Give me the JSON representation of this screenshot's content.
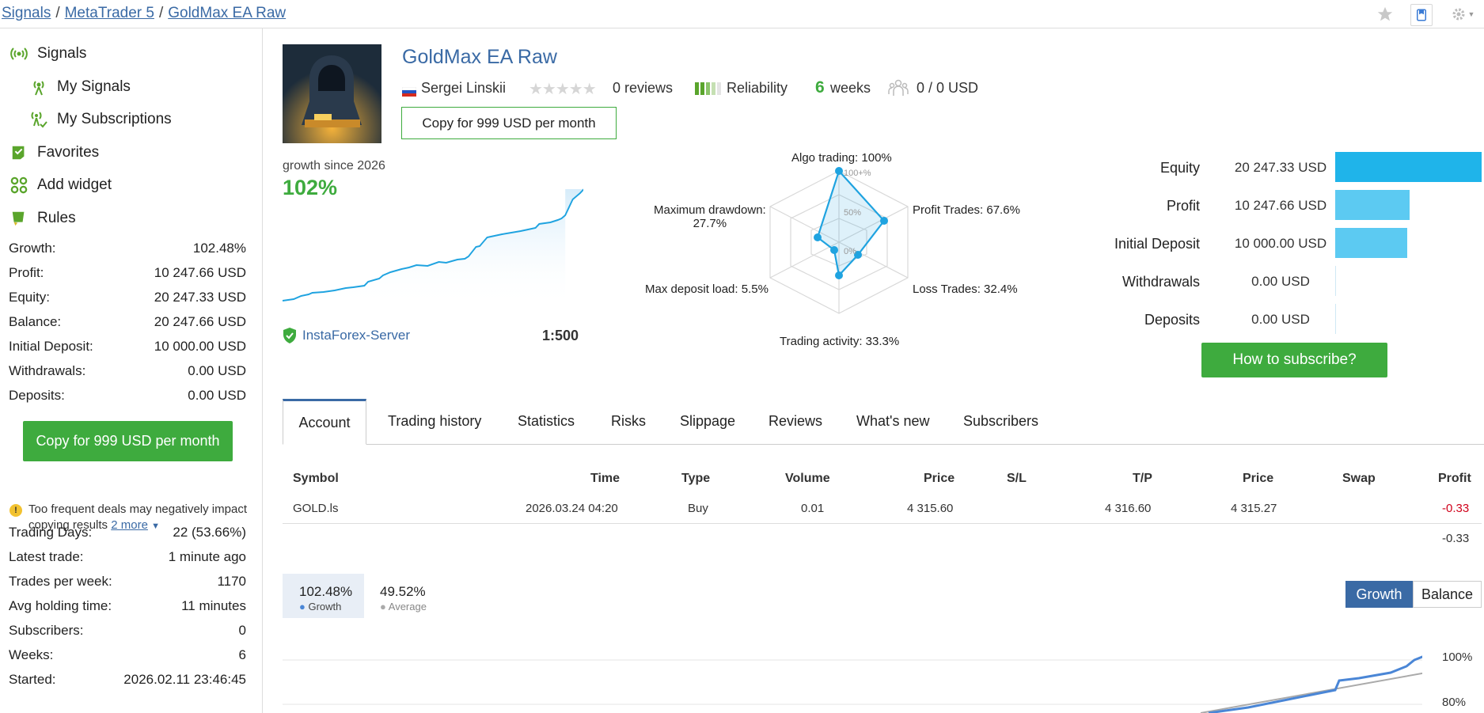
{
  "breadcrumbs": [
    "Signals",
    "MetaTrader 5",
    "GoldMax EA Raw"
  ],
  "top_icons": [
    "star-icon",
    "bookmark-icon",
    "gear-icon"
  ],
  "sidebar": {
    "nav": [
      {
        "label": "Signals",
        "icon": "signal-icon"
      },
      {
        "label": "My Signals",
        "icon": "signal-icon"
      },
      {
        "label": "My Subscriptions",
        "icon": "subscription-icon"
      },
      {
        "label": "Favorites",
        "icon": "favorites-icon"
      },
      {
        "label": "Add widget",
        "icon": "widget-icon"
      },
      {
        "label": "Rules",
        "icon": "rules-icon"
      }
    ],
    "stats": [
      {
        "label": "Growth:",
        "value": "102.48%"
      },
      {
        "label": "Profit:",
        "value": "10 247.66 USD"
      },
      {
        "label": "Equity:",
        "value": "20 247.33 USD"
      },
      {
        "label": "Balance:",
        "value": "20 247.66 USD"
      },
      {
        "label": "Initial Deposit:",
        "value": "10 000.00 USD"
      },
      {
        "label": "Withdrawals:",
        "value": "0.00 USD"
      },
      {
        "label": "Deposits:",
        "value": "0.00 USD"
      }
    ],
    "copy_button": "Copy for 999 USD per month",
    "warning": {
      "text": "Too frequent deals may negatively impact copying results",
      "more": "2 more"
    },
    "stats2": [
      {
        "label": "Trading Days:",
        "value": "22 (53.66%)"
      },
      {
        "label": "Latest trade:",
        "value": "1 minute ago"
      },
      {
        "label": "Trades per week:",
        "value": "1170"
      },
      {
        "label": "Avg holding time:",
        "value": "11 minutes"
      },
      {
        "label": "Subscribers:",
        "value": "0"
      },
      {
        "label": "Weeks:",
        "value": "6"
      },
      {
        "label": "Started:",
        "value": "2026.02.11 23:46:45"
      }
    ]
  },
  "signal": {
    "title": "GoldMax EA Raw",
    "author": "Sergei Linskii",
    "reviews": "0 reviews",
    "rating_stars": 0,
    "reliability": "Reliability",
    "weeks_num": "6",
    "weeks_label": "weeks",
    "subscribers_funds": "0 / 0 USD",
    "copy_button": "Copy for 999 USD per month",
    "growth_label": "growth since 2026",
    "growth_value": "102%",
    "server": "InstaForex-Server",
    "leverage": "1:500"
  },
  "radar": {
    "labels": {
      "algo": "Algo trading: 100%",
      "profit": "Profit Trades: 67.6%",
      "loss": "Loss Trades: 32.4%",
      "activity": "Trading activity: 33.3%",
      "load": "Max deposit load: 5.5%",
      "drawdown_1": "Maximum drawdown:",
      "drawdown_2": "27.7%"
    },
    "rings": [
      "100+%",
      "50%",
      "0%"
    ]
  },
  "bars": [
    {
      "label": "Equity",
      "value": "20 247.33 USD",
      "fraction": 1.0,
      "color": "#1fb4ea"
    },
    {
      "label": "Profit",
      "value": "10 247.66 USD",
      "fraction": 0.506,
      "color": "#5ccaf2"
    },
    {
      "label": "Initial Deposit",
      "value": "10 000.00 USD",
      "fraction": 0.494,
      "color": "#5ccaf2"
    },
    {
      "label": "Withdrawals",
      "value": "0.00 USD",
      "fraction": 0,
      "color": "#5ccaf2"
    },
    {
      "label": "Deposits",
      "value": "0.00 USD",
      "fraction": 0,
      "color": "#5ccaf2"
    }
  ],
  "how_to_subscribe": "How to subscribe?",
  "tabs": [
    "Account",
    "Trading history",
    "Statistics",
    "Risks",
    "Slippage",
    "Reviews",
    "What's new",
    "Subscribers"
  ],
  "table": {
    "headers": [
      "Symbol",
      "Time",
      "Type",
      "Volume",
      "Price",
      "S/L",
      "T/P",
      "Price",
      "Swap",
      "Profit"
    ],
    "row": [
      "GOLD.ls",
      "2026.03.24 04:20",
      "Buy",
      "0.01",
      "4 315.60",
      "",
      "4 316.60",
      "4 315.27",
      "",
      "-0.33"
    ],
    "total": "-0.33"
  },
  "chart_selector": {
    "growth_value": "102.48%",
    "growth_label": "Growth",
    "average_value": "49.52%",
    "average_label": "Average",
    "btn_growth": "Growth",
    "btn_balance": "Balance",
    "axis_100": "100%",
    "axis_80": "80%"
  },
  "colors": {
    "accent": "#3a6aa5",
    "green": "#3eab3e",
    "line": "#1fa3e0"
  }
}
